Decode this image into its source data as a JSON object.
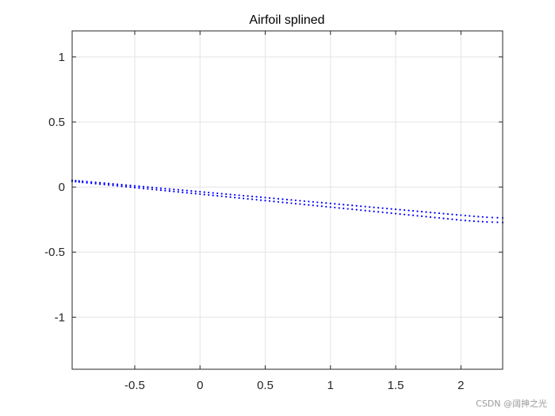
{
  "chart_data": {
    "type": "scatter",
    "title": "Airfoil splined",
    "xlabel": "",
    "ylabel": "",
    "xlim": [
      -0.98,
      2.32
    ],
    "ylim": [
      -1.4,
      1.2
    ],
    "xticks": [
      -0.5,
      0,
      0.5,
      1,
      1.5,
      2
    ],
    "xtick_labels": [
      "-0.5",
      "0",
      "0.5",
      "1",
      "1.5",
      "2"
    ],
    "yticks": [
      -1,
      -0.5,
      0,
      0.5,
      1
    ],
    "ytick_labels": [
      "-1",
      "-0.5",
      "0",
      "0.5",
      "1"
    ],
    "grid": true,
    "box": true,
    "series": [
      {
        "marker": "dot",
        "color": "#0000ff",
        "points": [
          [
            -0.98,
            0.052
          ],
          [
            -0.9,
            0.045
          ],
          [
            -0.8,
            0.036
          ],
          [
            -0.7,
            0.027
          ],
          [
            -0.6,
            0.018
          ],
          [
            -0.5,
            0.009
          ],
          [
            -0.4,
            0.0
          ],
          [
            -0.3,
            -0.009
          ],
          [
            -0.2,
            -0.018
          ],
          [
            -0.1,
            -0.027
          ],
          [
            0.0,
            -0.036
          ],
          [
            0.1,
            -0.045
          ],
          [
            0.2,
            -0.054
          ],
          [
            0.3,
            -0.063
          ],
          [
            0.4,
            -0.072
          ],
          [
            0.5,
            -0.081
          ],
          [
            0.6,
            -0.09
          ],
          [
            0.7,
            -0.099
          ],
          [
            0.8,
            -0.108
          ],
          [
            0.9,
            -0.117
          ],
          [
            1.0,
            -0.126
          ],
          [
            1.1,
            -0.135
          ],
          [
            1.2,
            -0.144
          ],
          [
            1.3,
            -0.153
          ],
          [
            1.4,
            -0.162
          ],
          [
            1.5,
            -0.171
          ],
          [
            1.6,
            -0.18
          ],
          [
            1.7,
            -0.189
          ],
          [
            1.8,
            -0.198
          ],
          [
            1.9,
            -0.207
          ],
          [
            2.0,
            -0.216
          ],
          [
            2.1,
            -0.225
          ],
          [
            2.2,
            -0.232
          ],
          [
            2.32,
            -0.237
          ]
        ]
      },
      {
        "marker": "dot",
        "color": "#0000ff",
        "points": [
          [
            -0.98,
            0.044
          ],
          [
            -0.9,
            0.036
          ],
          [
            -0.8,
            0.026
          ],
          [
            -0.7,
            0.016
          ],
          [
            -0.6,
            0.006
          ],
          [
            -0.5,
            -0.004
          ],
          [
            -0.4,
            -0.014
          ],
          [
            -0.3,
            -0.024
          ],
          [
            -0.2,
            -0.034
          ],
          [
            -0.1,
            -0.044
          ],
          [
            0.0,
            -0.054
          ],
          [
            0.1,
            -0.064
          ],
          [
            0.2,
            -0.074
          ],
          [
            0.3,
            -0.084
          ],
          [
            0.4,
            -0.094
          ],
          [
            0.5,
            -0.104
          ],
          [
            0.6,
            -0.114
          ],
          [
            0.7,
            -0.124
          ],
          [
            0.8,
            -0.134
          ],
          [
            0.9,
            -0.144
          ],
          [
            1.0,
            -0.154
          ],
          [
            1.1,
            -0.164
          ],
          [
            1.2,
            -0.174
          ],
          [
            1.3,
            -0.184
          ],
          [
            1.4,
            -0.194
          ],
          [
            1.5,
            -0.204
          ],
          [
            1.6,
            -0.214
          ],
          [
            1.7,
            -0.224
          ],
          [
            1.8,
            -0.234
          ],
          [
            1.9,
            -0.244
          ],
          [
            2.0,
            -0.254
          ],
          [
            2.1,
            -0.262
          ],
          [
            2.2,
            -0.268
          ],
          [
            2.32,
            -0.272
          ]
        ]
      }
    ]
  },
  "watermark": "CSDN @阔抻之光",
  "colors": {
    "grid": "#e3e3e3",
    "axis": "#262626",
    "marker": "#0000ff"
  }
}
